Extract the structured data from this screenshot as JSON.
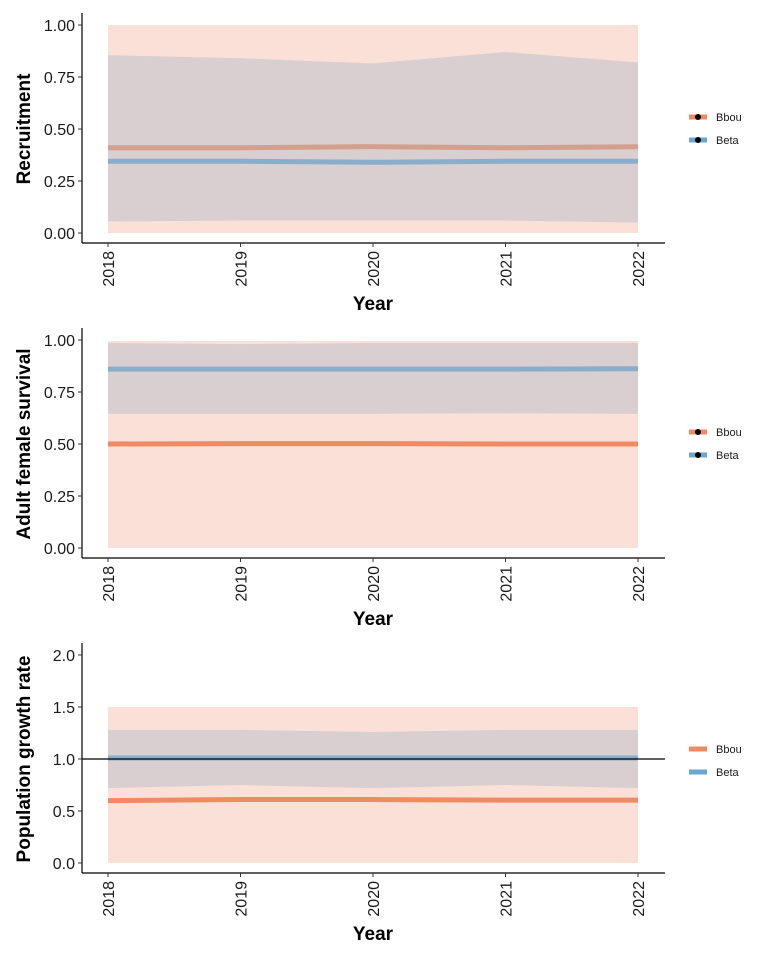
{
  "colors": {
    "Bbou": "#f08a62",
    "Beta": "#6aa6cf",
    "Bbou_band": "#fbe0d8",
    "Beta_band": "#b0b8c8"
  },
  "chart_data": [
    {
      "type": "line",
      "ylabel": "Recruitment",
      "xlabel": "Year",
      "x": [
        2018,
        2019,
        2020,
        2021,
        2022
      ],
      "ylim": [
        0,
        1
      ],
      "yticks": [
        "0.00",
        "0.25",
        "0.50",
        "0.75",
        "1.00"
      ],
      "ytick_values": [
        0,
        0.25,
        0.5,
        0.75,
        1.0
      ],
      "legend": {
        "position": "right",
        "points": true
      },
      "series": [
        {
          "name": "Bbou",
          "values": [
            0.41,
            0.41,
            0.415,
            0.41,
            0.415
          ],
          "lower": [
            0,
            0,
            0,
            0,
            0
          ],
          "upper": [
            1,
            1,
            1,
            1,
            1
          ]
        },
        {
          "name": "Beta",
          "values": [
            0.345,
            0.345,
            0.34,
            0.345,
            0.345
          ],
          "lower": [
            0.055,
            0.06,
            0.06,
            0.06,
            0.05
          ],
          "upper": [
            0.855,
            0.84,
            0.815,
            0.87,
            0.82
          ]
        }
      ]
    },
    {
      "type": "line",
      "ylabel": "Adult female survival",
      "xlabel": "Year",
      "x": [
        2018,
        2019,
        2020,
        2021,
        2022
      ],
      "ylim": [
        0,
        1
      ],
      "yticks": [
        "0.00",
        "0.25",
        "0.50",
        "0.75",
        "1.00"
      ],
      "ytick_values": [
        0,
        0.25,
        0.5,
        0.75,
        1.0
      ],
      "legend": {
        "position": "right",
        "points": true
      },
      "series": [
        {
          "name": "Bbou",
          "values": [
            0.5,
            0.502,
            0.502,
            0.5,
            0.5
          ],
          "lower": [
            0,
            0,
            0,
            0,
            0
          ],
          "upper": [
            0.995,
            0.995,
            0.995,
            0.995,
            0.995
          ]
        },
        {
          "name": "Beta",
          "values": [
            0.86,
            0.86,
            0.86,
            0.86,
            0.862
          ],
          "lower": [
            0.645,
            0.645,
            0.645,
            0.648,
            0.645
          ],
          "upper": [
            0.985,
            0.98,
            0.985,
            0.985,
            0.985
          ]
        }
      ]
    },
    {
      "type": "line",
      "ylabel": "Population growth rate",
      "xlabel": "Year",
      "x": [
        2018,
        2019,
        2020,
        2021,
        2022
      ],
      "ylim": [
        0,
        2
      ],
      "yticks": [
        "0.0",
        "0.5",
        "1.0",
        "1.5",
        "2.0"
      ],
      "ytick_values": [
        0,
        0.5,
        1.0,
        1.5,
        2.0
      ],
      "hline": 1.0,
      "legend": {
        "position": "right",
        "points": false
      },
      "series": [
        {
          "name": "Bbou",
          "values": [
            0.6,
            0.61,
            0.61,
            0.605,
            0.605
          ],
          "lower": [
            0,
            0,
            0,
            0,
            0
          ],
          "upper": [
            1.5,
            1.5,
            1.5,
            1.5,
            1.5
          ]
        },
        {
          "name": "Beta",
          "values": [
            1.01,
            1.01,
            1.01,
            1.01,
            1.01
          ],
          "lower": [
            0.72,
            0.75,
            0.72,
            0.75,
            0.72
          ],
          "upper": [
            1.28,
            1.28,
            1.26,
            1.28,
            1.28
          ]
        }
      ]
    }
  ]
}
